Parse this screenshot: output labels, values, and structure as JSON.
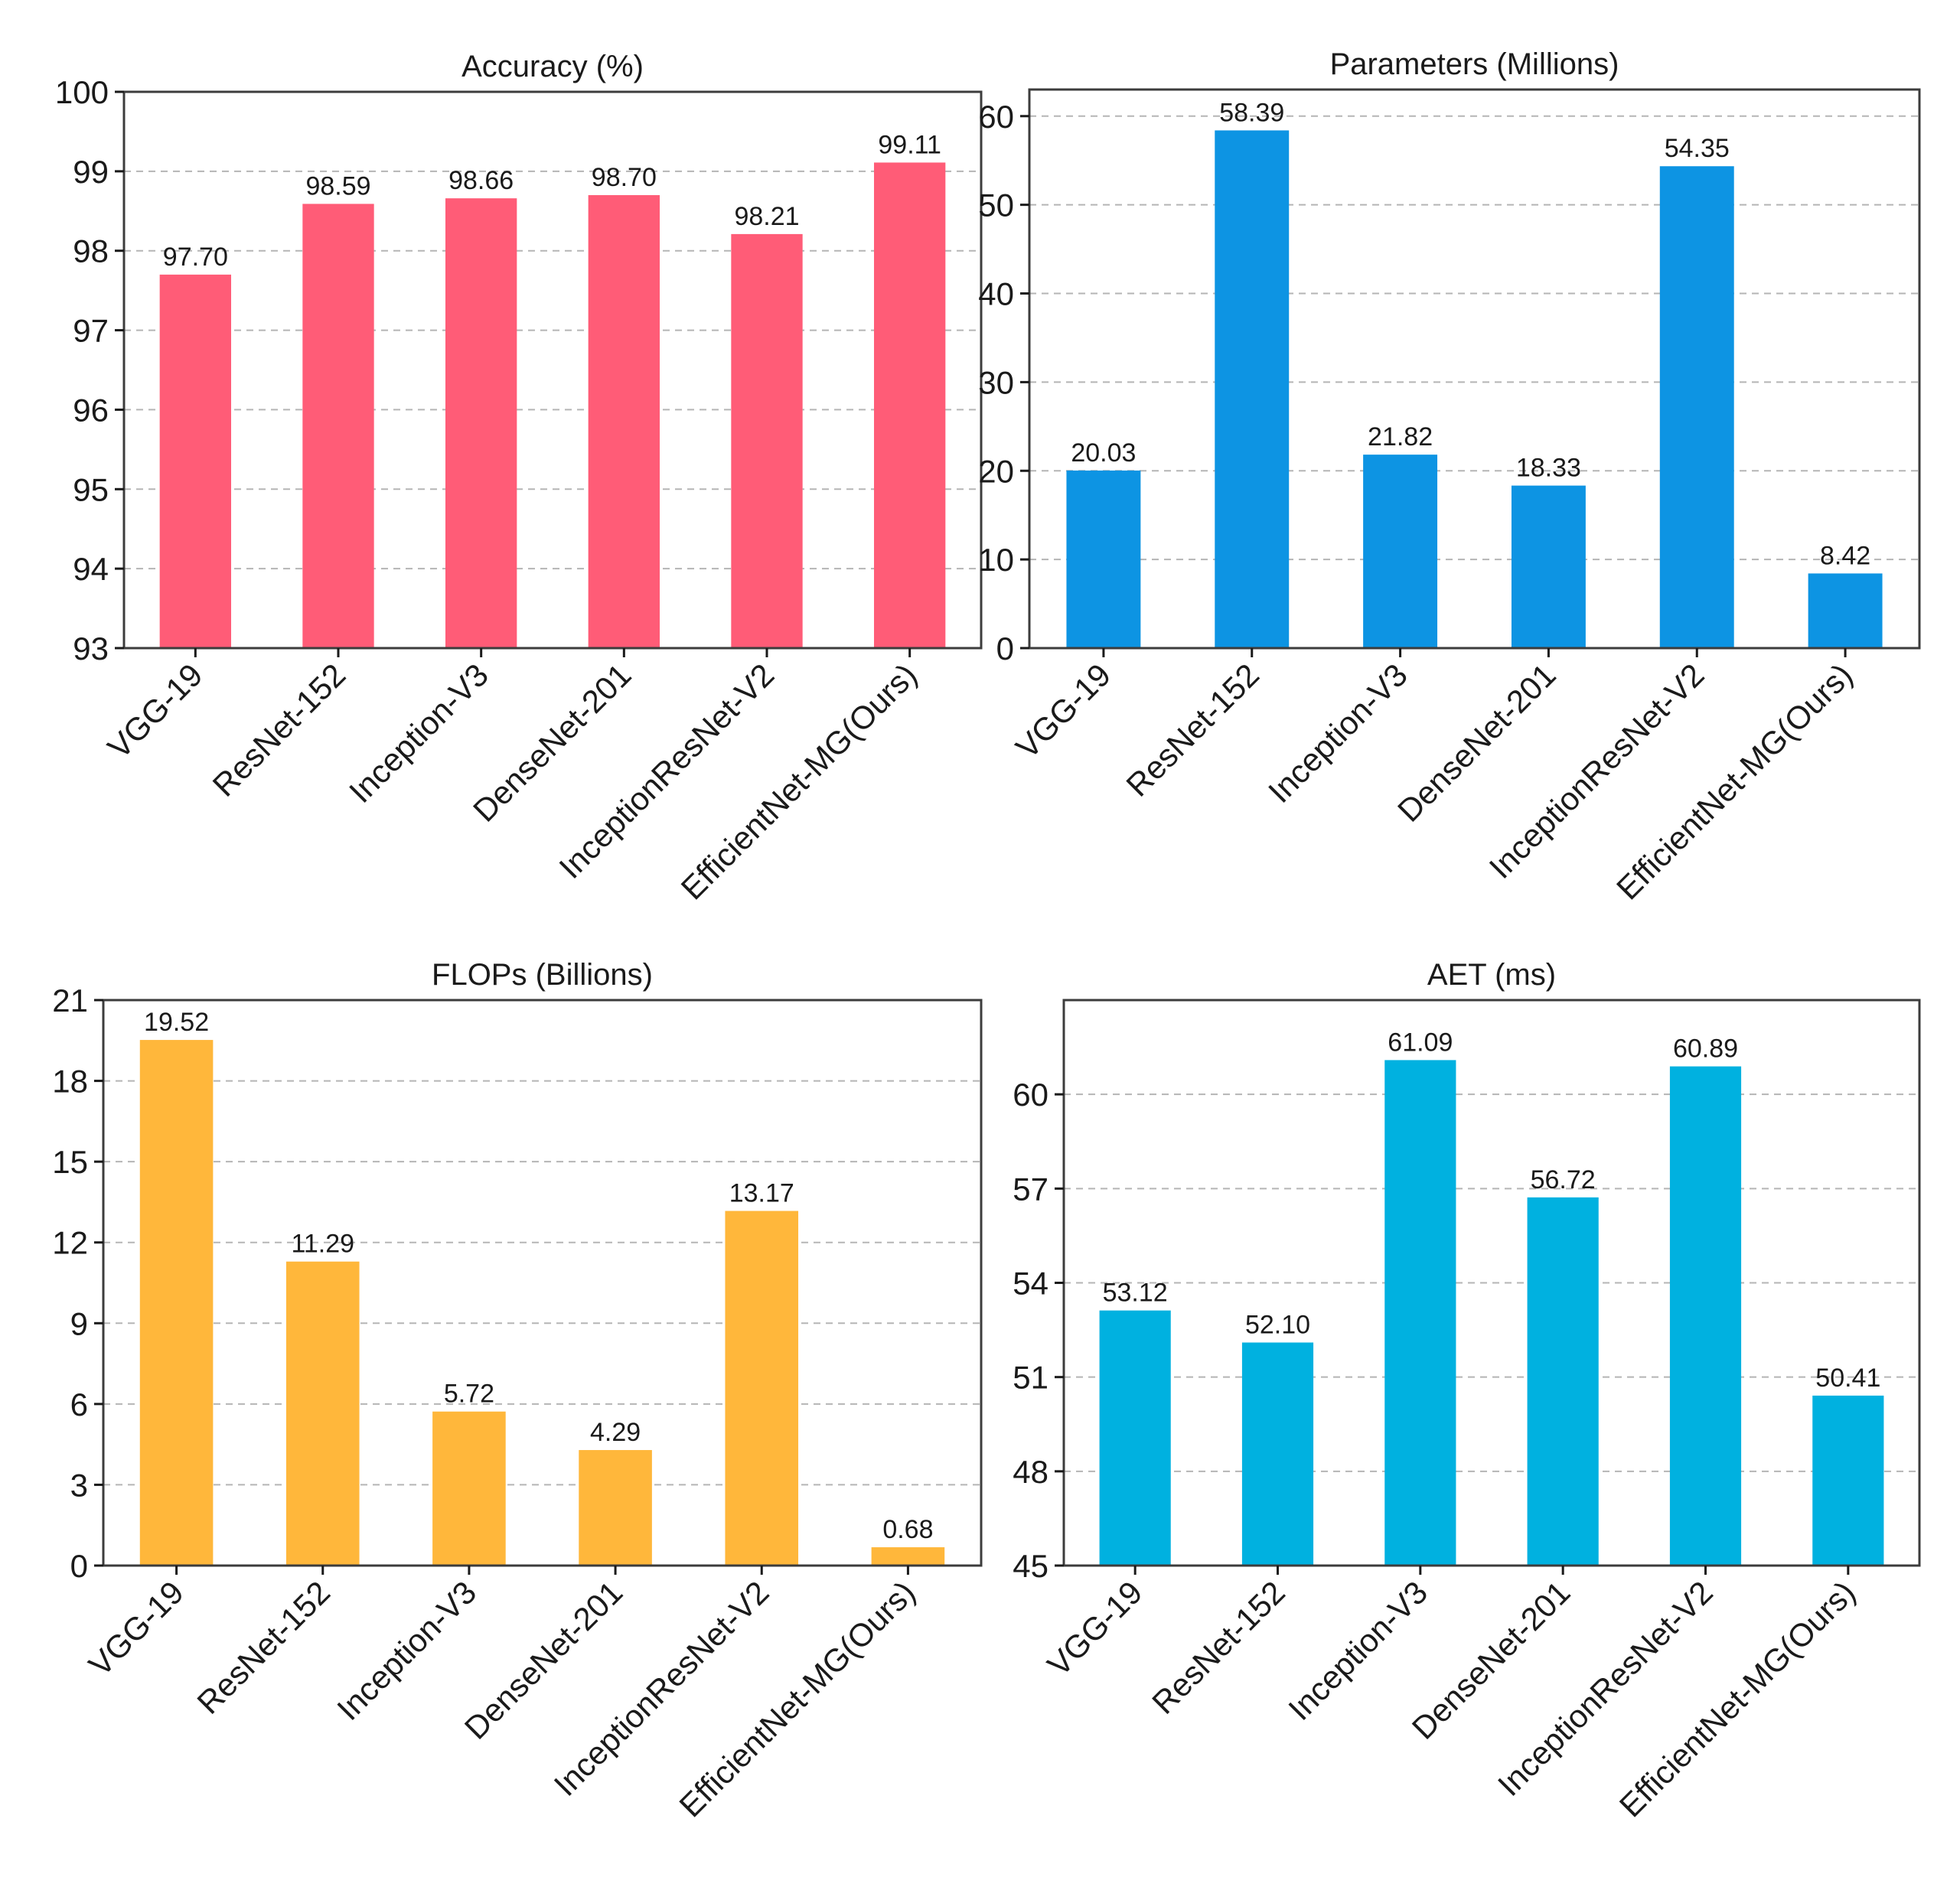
{
  "chart_data": [
    {
      "type": "bar",
      "title": "Accuracy (%)",
      "categories": [
        "VGG-19",
        "ResNet-152",
        "Inception-V3",
        "DenseNet-201",
        "InceptionResNet-V2",
        "EfficientNet-MG(Ours)"
      ],
      "values": [
        97.7,
        98.59,
        98.66,
        98.7,
        98.21,
        99.11
      ],
      "value_labels": [
        "97.70",
        "98.59",
        "98.66",
        "98.70",
        "98.21",
        "99.11"
      ],
      "ylim": [
        93,
        100
      ],
      "yticks": [
        93,
        94,
        95,
        96,
        97,
        98,
        99,
        100
      ],
      "color": "#ff5c77",
      "grid": true,
      "xlabel": "",
      "ylabel": ""
    },
    {
      "type": "bar",
      "title": "Parameters (Millions)",
      "categories": [
        "VGG-19",
        "ResNet-152",
        "Inception-V3",
        "DenseNet-201",
        "InceptionResNet-V2",
        "EfficientNet-MG(Ours)"
      ],
      "values": [
        20.03,
        58.39,
        21.82,
        18.33,
        54.35,
        8.42
      ],
      "value_labels": [
        "20.03",
        "58.39",
        "21.82",
        "18.33",
        "54.35",
        "8.42"
      ],
      "ylim": [
        0,
        63
      ],
      "yticks": [
        0,
        10,
        20,
        30,
        40,
        50,
        60
      ],
      "color": "#0d94e3",
      "grid": true,
      "xlabel": "",
      "ylabel": ""
    },
    {
      "type": "bar",
      "title": "FLOPs (Billions)",
      "categories": [
        "VGG-19",
        "ResNet-152",
        "Inception-V3",
        "DenseNet-201",
        "InceptionResNet-V2",
        "EfficientNet-MG(Ours)"
      ],
      "values": [
        19.52,
        11.29,
        5.72,
        4.29,
        13.17,
        0.68
      ],
      "value_labels": [
        "19.52",
        "11.29",
        "5.72",
        "4.29",
        "13.17",
        "0.68"
      ],
      "ylim": [
        0,
        21
      ],
      "yticks": [
        0,
        3,
        6,
        9,
        12,
        15,
        18,
        21
      ],
      "color": "#ffb73b",
      "grid": true,
      "xlabel": "",
      "ylabel": ""
    },
    {
      "type": "bar",
      "title": "AET (ms)",
      "categories": [
        "VGG-19",
        "ResNet-152",
        "Inception-V3",
        "DenseNet-201",
        "InceptionResNet-V2",
        "EfficientNet-MG(Ours)"
      ],
      "values": [
        53.12,
        52.1,
        61.09,
        56.72,
        60.89,
        50.41
      ],
      "value_labels": [
        "53.12",
        "52.10",
        "61.09",
        "56.72",
        "60.89",
        "50.41"
      ],
      "ylim": [
        45,
        63
      ],
      "yticks": [
        45,
        48,
        51,
        54,
        57,
        60
      ],
      "color": "#00b1e0",
      "grid": true,
      "xlabel": "",
      "ylabel": ""
    }
  ]
}
